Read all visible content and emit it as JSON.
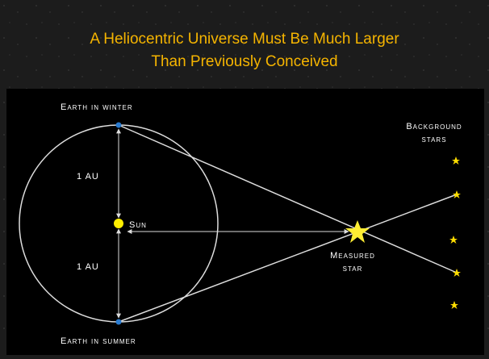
{
  "header": {
    "title_lines": [
      "A  Heliocentric Universe Must Be Much Larger",
      "Than Previously Conceived"
    ]
  },
  "diagram": {
    "labels": {
      "earth_winter": "Earth in winter",
      "earth_summer": "Earth in summer",
      "sun": "Sun",
      "au_upper": "1 AU",
      "au_lower": "1 AU",
      "background_stars": [
        "Background",
        "stars"
      ],
      "measured_star": [
        "Measured",
        "star"
      ]
    }
  }
}
